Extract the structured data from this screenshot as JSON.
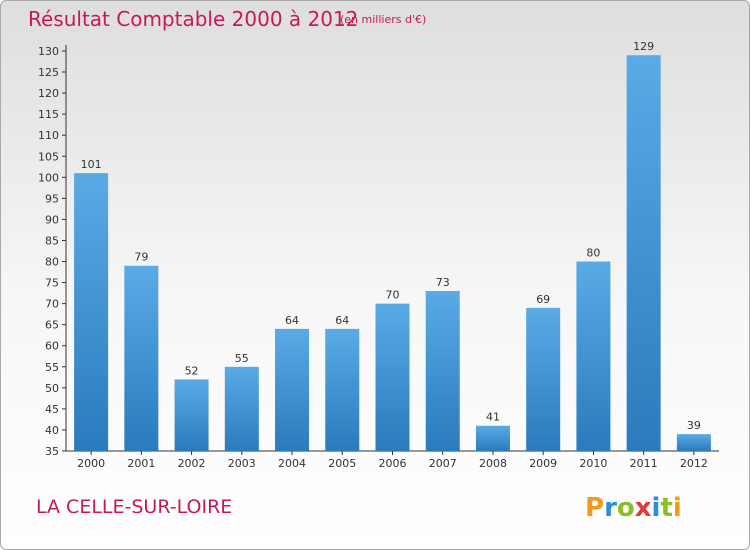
{
  "title": "Résultat Comptable 2000 à 2012",
  "subtitle": "(en milliers d'€)",
  "commune": "LA CELLE-SUR-LOIRE",
  "logo_text": "Proxiti",
  "colors": {
    "title": "#c8185c",
    "bar_light": "#5aaae6",
    "bar_dark": "#2a7bbd",
    "axis": "#333333"
  },
  "chart_data": {
    "type": "bar",
    "categories": [
      "2000",
      "2001",
      "2002",
      "2003",
      "2004",
      "2005",
      "2006",
      "2007",
      "2008",
      "2009",
      "2010",
      "2011",
      "2012"
    ],
    "values": [
      101,
      79,
      52,
      55,
      64,
      64,
      70,
      73,
      41,
      69,
      80,
      129,
      39
    ],
    "ylim": [
      35,
      130
    ],
    "yticks": [
      35,
      40,
      45,
      50,
      55,
      60,
      65,
      70,
      75,
      80,
      85,
      90,
      95,
      100,
      105,
      110,
      115,
      120,
      125,
      130
    ],
    "grid": false,
    "data_labels": true
  }
}
